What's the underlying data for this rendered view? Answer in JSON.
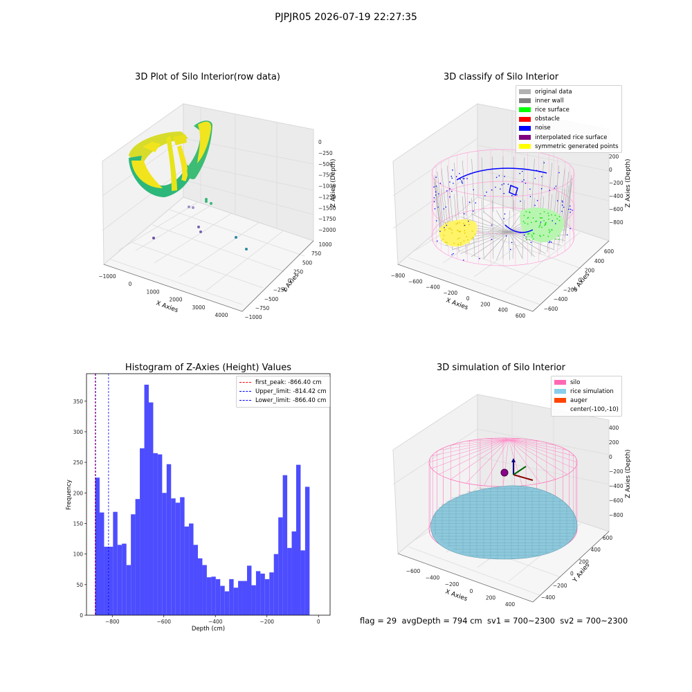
{
  "suptitle": "PJPJR05 2026-07-19 22:27:35",
  "status_text": "flag = 29  avgDepth = 794 cm  sv1 = 700~2300  sv2 = 700~2300",
  "colors": {
    "original": "#b2b2b2",
    "inner_wall": "#808080",
    "rice_surface": "#00ff00",
    "obstacle": "#ff0000",
    "noise": "#0000ff",
    "interpolated": "#800080",
    "symmetric": "#ffff00",
    "silo": "#ff69b4",
    "rice_sim": "#87ceeb",
    "auger": "#ff4500",
    "hist_bar": "#4d4dff"
  },
  "chart_data": [
    {
      "type": "scatter",
      "title": "3D Plot of Silo Interior(row data)",
      "xlabel": "X Axies",
      "ylabel": "Y Axies",
      "zlabel": "Z Axies (Depth)",
      "xticks": [
        "−1000",
        "0",
        "1000",
        "2000",
        "3000",
        "4000"
      ],
      "yticks": [
        "−1000",
        "−750",
        "−500",
        "−250",
        "0",
        "250",
        "500",
        "750",
        "1000"
      ],
      "zticks": [
        "−2000",
        "−1750",
        "−1500",
        "−1250",
        "−1000",
        "−750",
        "−500",
        "−250",
        "0"
      ],
      "xlim": [
        -1000,
        4000
      ],
      "ylim": [
        -1000,
        1000
      ],
      "zlim": [
        -2000,
        0
      ]
    },
    {
      "type": "scatter",
      "title": "3D classify of Silo Interior",
      "xlabel": "X Axies",
      "ylabel": "Y Axies",
      "zlabel": "Z Axies (Depth)",
      "xticks": [
        "−800",
        "−600",
        "−400",
        "−200",
        "0",
        "200",
        "400",
        "600"
      ],
      "yticks": [
        "−600",
        "−400",
        "−200",
        "0",
        "200",
        "400",
        "600"
      ],
      "zticks": [
        "−800",
        "−600",
        "−400",
        "−200",
        "0",
        "200"
      ],
      "legend": [
        "original data",
        "inner wall",
        "rice surface",
        "obstacle",
        "noise",
        "interpolated rice surface",
        "symmetric generated points"
      ],
      "legend_position": "top-right"
    },
    {
      "type": "bar",
      "title": "Histogram of Z-Axies (Height) Values",
      "xlabel": "Depth (cm)",
      "ylabel": "Frequency",
      "xlim": [
        -900,
        45
      ],
      "ylim": [
        0,
        395
      ],
      "xticks": [
        -800,
        -600,
        -400,
        -200,
        0
      ],
      "yticks": [
        0,
        50,
        100,
        150,
        200,
        250,
        300,
        350
      ],
      "bin_start": -866.4,
      "bin_width": 17.33,
      "values": [
        225,
        168,
        112,
        112,
        169,
        115,
        117,
        82,
        165,
        190,
        273,
        377,
        348,
        265,
        263,
        200,
        247,
        191,
        184,
        193,
        145,
        150,
        115,
        93,
        82,
        62,
        63,
        59,
        48,
        39,
        59,
        45,
        56,
        56,
        81,
        49,
        72,
        68,
        59,
        70,
        100,
        160,
        229,
        110,
        137,
        246,
        106,
        210
      ],
      "vlines": [
        {
          "label": "first_peak: -866.40 cm",
          "x": -866.4,
          "color": "#ff0000"
        },
        {
          "label": "Upper_limit: -814.42 cm",
          "x": -814.42,
          "color": "#0000ff"
        },
        {
          "label": "Lower_limit: -866.40 cm",
          "x": -866.4,
          "color": "#0000ff"
        }
      ],
      "legend_position": "top-right"
    },
    {
      "type": "scatter",
      "title": "3D simulation of Silo Interior",
      "xlabel": "X Axies",
      "ylabel": "Y Axies",
      "zlabel": "Z Axies (Depth)",
      "xticks": [
        "−600",
        "−400",
        "−200",
        "0",
        "200",
        "400"
      ],
      "yticks": [
        "−400",
        "−200",
        "0",
        "200",
        "400",
        "600"
      ],
      "zticks": [
        "−800",
        "−600",
        "−400",
        "−200",
        "0",
        "200",
        "400"
      ],
      "legend": [
        "silo",
        "rice simulation",
        "auger",
        "center(-100,-10)"
      ],
      "legend_position": "top-right"
    }
  ]
}
